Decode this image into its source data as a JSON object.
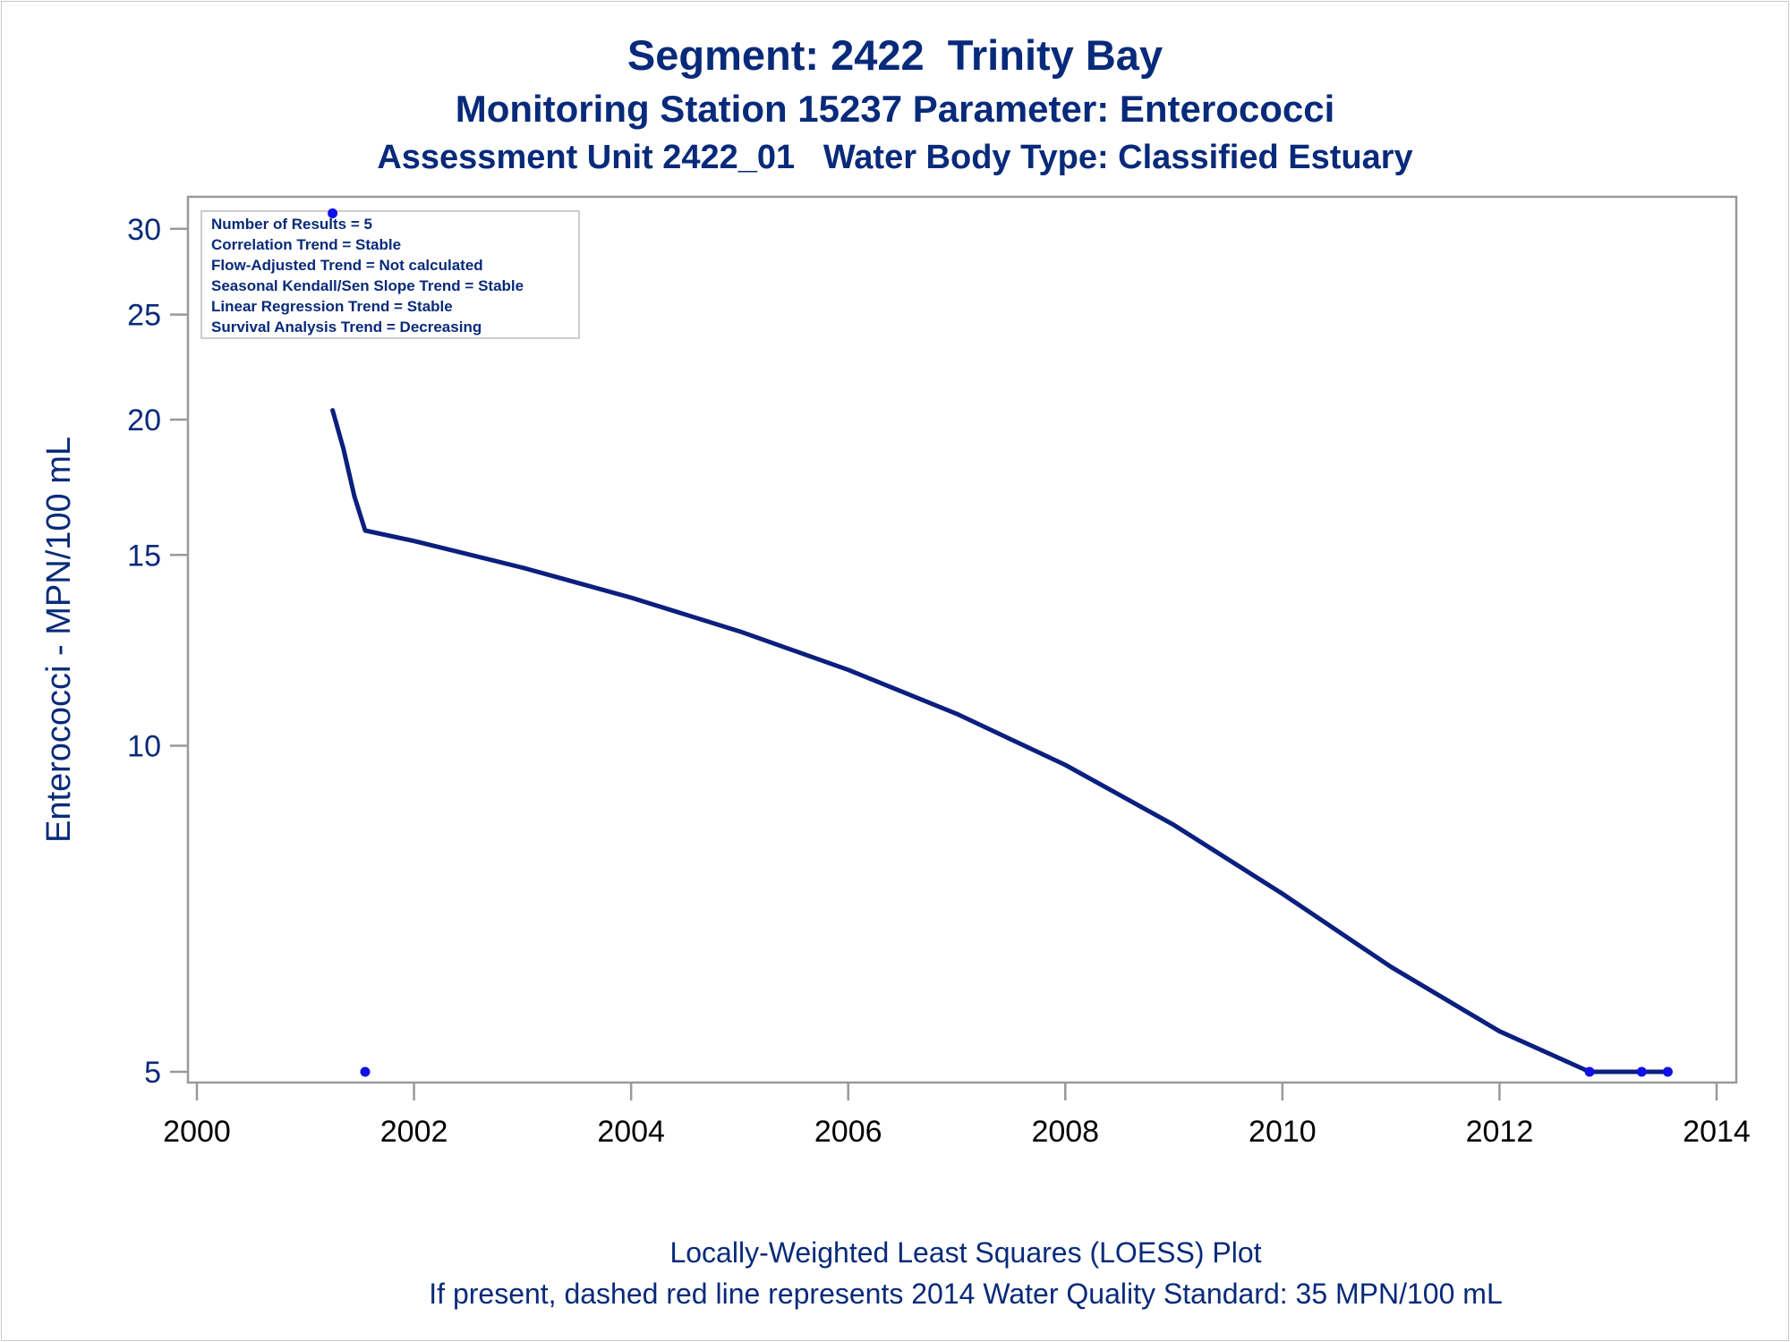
{
  "titles": {
    "line1": "Segment: 2422  Trinity Bay",
    "line2": "Monitoring Station 15237 Parameter: Enterococci",
    "line3": "Assessment Unit 2422_01   Water Body Type: Classified Estuary"
  },
  "footnotes": {
    "line1": "Locally-Weighted Least Squares (LOESS) Plot",
    "line2": "If present, dashed red line represents 2014 Water Quality Standard: 35 MPN/100 mL"
  },
  "stats_box": [
    "Number of Results = 5",
    "Correlation Trend = Stable",
    "Flow-Adjusted Trend = Not calculated",
    "Seasonal Kendall/Sen Slope Trend = Stable",
    "Linear Regression Trend = Stable",
    "Survival Analysis Trend = Decreasing"
  ],
  "colors": {
    "text": "#082a7a",
    "line": "#0b1f7e",
    "points": "#1010e8",
    "axis": "#999999"
  },
  "chart_data": {
    "type": "line",
    "scale_y": "log",
    "ylabel": "Enterococci - MPN/100 mL",
    "xlabel": "",
    "xlim": [
      2000,
      2014
    ],
    "ylim": [
      4.85,
      31.6
    ],
    "x_ticks": [
      2000,
      2002,
      2004,
      2006,
      2008,
      2010,
      2012,
      2014
    ],
    "y_ticks": [
      5,
      10,
      15,
      20,
      25,
      30
    ],
    "grid": false,
    "legend": "none",
    "series": [
      {
        "kind": "observations",
        "points": [
          {
            "x": 2001.25,
            "y": 31
          },
          {
            "x": 2001.55,
            "y": 5
          },
          {
            "x": 2012.83,
            "y": 5
          },
          {
            "x": 2013.31,
            "y": 5
          },
          {
            "x": 2013.55,
            "y": 5
          }
        ]
      },
      {
        "kind": "loess",
        "points": [
          {
            "x": 2001.25,
            "y": 20.4
          },
          {
            "x": 2001.35,
            "y": 18.8
          },
          {
            "x": 2001.45,
            "y": 17.0
          },
          {
            "x": 2001.55,
            "y": 15.8
          },
          {
            "x": 2002.0,
            "y": 15.45
          },
          {
            "x": 2003.0,
            "y": 14.6
          },
          {
            "x": 2004.0,
            "y": 13.7
          },
          {
            "x": 2005.0,
            "y": 12.75
          },
          {
            "x": 2006.0,
            "y": 11.75
          },
          {
            "x": 2007.0,
            "y": 10.7
          },
          {
            "x": 2008.0,
            "y": 9.6
          },
          {
            "x": 2009.0,
            "y": 8.45
          },
          {
            "x": 2010.0,
            "y": 7.3
          },
          {
            "x": 2011.0,
            "y": 6.25
          },
          {
            "x": 2012.0,
            "y": 5.45
          },
          {
            "x": 2012.83,
            "y": 5.0
          },
          {
            "x": 2013.31,
            "y": 5.0
          },
          {
            "x": 2013.55,
            "y": 5.0
          }
        ]
      }
    ]
  }
}
